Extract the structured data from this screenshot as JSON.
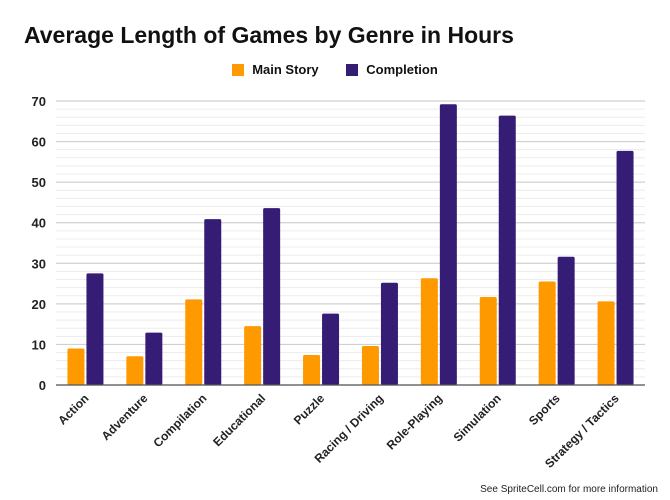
{
  "chart_data": {
    "type": "bar",
    "title": "Average Length of Games by Genre in Hours",
    "categories": [
      "Action",
      "Adventure",
      "Compilation",
      "Educational",
      "Puzzle",
      "Racing / Driving",
      "Role-Playing",
      "Simulation",
      "Sports",
      "Strategy / Tactics"
    ],
    "series": [
      {
        "name": "Main Story",
        "color": "#ff9900",
        "values": [
          9.0,
          7.1,
          21.1,
          14.5,
          7.4,
          9.6,
          26.3,
          21.7,
          25.5,
          20.6
        ]
      },
      {
        "name": "Completion",
        "color": "#351c75",
        "values": [
          27.5,
          12.9,
          40.9,
          43.6,
          17.6,
          25.2,
          69.2,
          66.4,
          31.6,
          57.7
        ]
      }
    ],
    "ylim": [
      0,
      70
    ],
    "yticks": [
      0,
      10,
      20,
      30,
      40,
      50,
      60,
      70
    ],
    "grid": true,
    "legend_position": "top"
  },
  "footer": "See SpriteCell.com for more information"
}
